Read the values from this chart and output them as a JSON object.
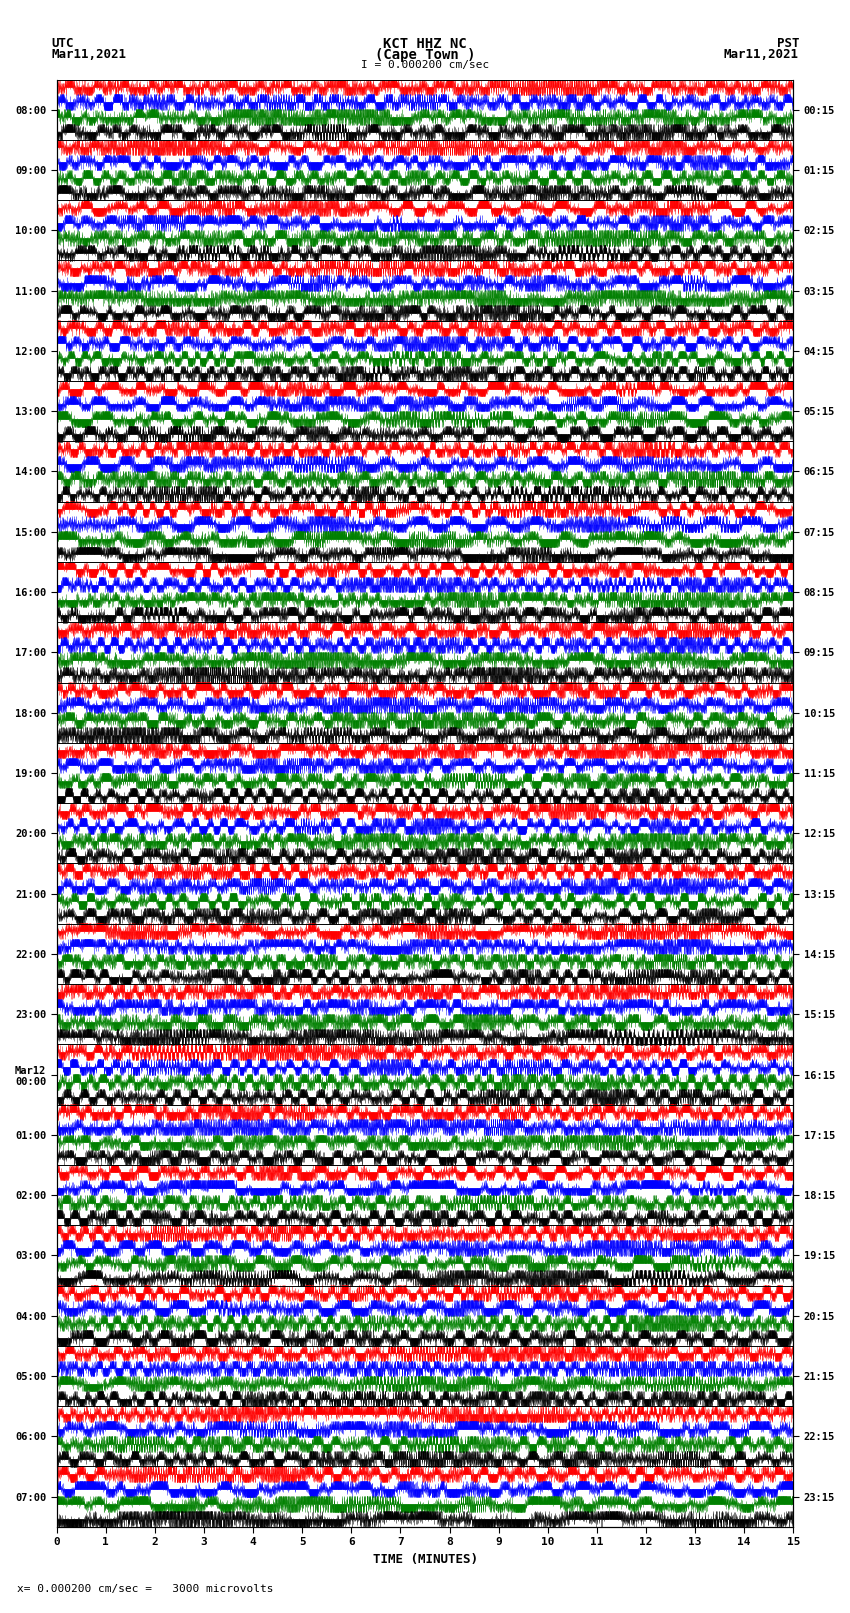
{
  "title_line1": "KCT HHZ NC",
  "title_line2": "(Cape Town )",
  "scale_text": "I = 0.000200 cm/sec",
  "bottom_scale_text": "= 0.000200 cm/sec =   3000 microvolts",
  "utc_label": "UTC",
  "utc_date": "Mar11,2021",
  "pst_label": "PST",
  "pst_date": "Mar11,2021",
  "xlabel": "TIME (MINUTES)",
  "left_times": [
    "08:00",
    "09:00",
    "10:00",
    "11:00",
    "12:00",
    "13:00",
    "14:00",
    "15:00",
    "16:00",
    "17:00",
    "18:00",
    "19:00",
    "20:00",
    "21:00",
    "22:00",
    "23:00",
    "Mar12\n00:00",
    "01:00",
    "02:00",
    "03:00",
    "04:00",
    "05:00",
    "06:00",
    "07:00"
  ],
  "right_times": [
    "00:15",
    "01:15",
    "02:15",
    "03:15",
    "04:15",
    "05:15",
    "06:15",
    "07:15",
    "08:15",
    "09:15",
    "10:15",
    "11:15",
    "12:15",
    "13:15",
    "14:15",
    "15:15",
    "16:15",
    "17:15",
    "18:15",
    "19:15",
    "20:15",
    "21:15",
    "22:15",
    "23:15"
  ],
  "num_rows": 24,
  "minutes_per_row": 15,
  "bg_color": "#ffffff",
  "colors": [
    "red",
    "blue",
    "green",
    "black"
  ],
  "seed": 42
}
